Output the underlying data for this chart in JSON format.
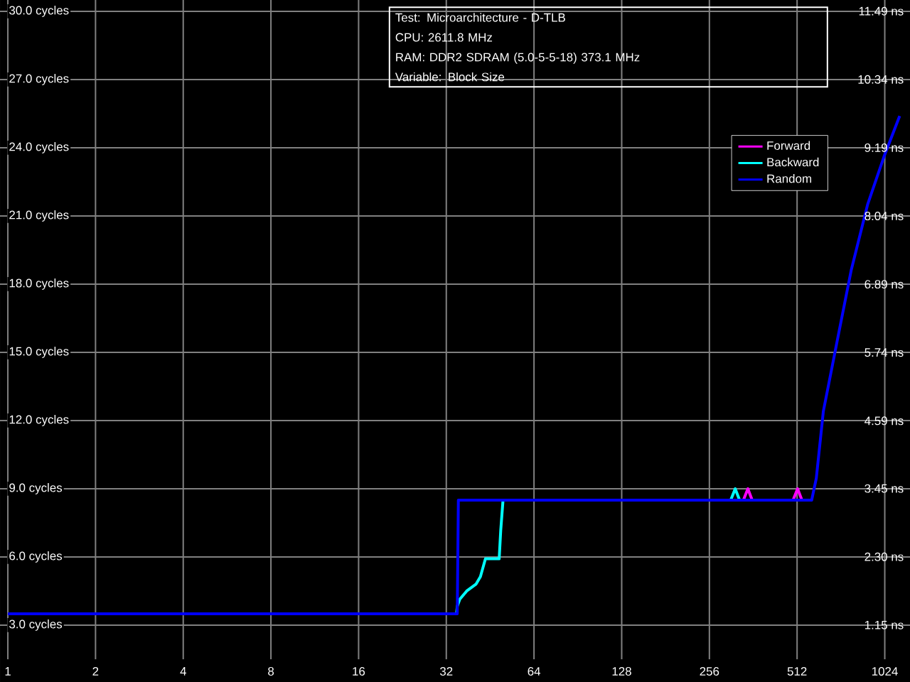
{
  "chart_data": {
    "type": "line",
    "annotations": [
      "Test: Microarchitecture - D-TLB",
      "CPU: 2611.8 MHz",
      "RAM: DDR2 SDRAM (5.0-5-5-18) 373.1 MHz",
      "Variable: Block Size"
    ],
    "log": "x",
    "grid": true,
    "legend": "top right",
    "marker": "none",
    "line_style": "solid",
    "xlim": [
      0.94,
      1250
    ],
    "xticks": [
      1,
      2,
      4,
      8,
      16,
      32,
      64,
      128,
      256,
      512,
      1024
    ],
    "ylim": [
      1.5,
      30.5
    ],
    "yticks": [
      {
        "value": 3,
        "label": "3.0 cycles"
      },
      {
        "value": 6,
        "label": "6.0 cycles"
      },
      {
        "value": 9,
        "label": "9.0 cycles"
      },
      {
        "value": 12,
        "label": "12.0 cycles"
      },
      {
        "value": 15,
        "label": "15.0 cycles"
      },
      {
        "value": 18,
        "label": "18.0 cycles"
      },
      {
        "value": 21,
        "label": "21.0 cycles"
      },
      {
        "value": 24,
        "label": "24.0 cycles"
      },
      {
        "value": 27,
        "label": "27.0 cycles"
      },
      {
        "value": 30,
        "label": "30.0 cycles"
      }
    ],
    "y2lim": [
      0.574,
      11.678
    ],
    "y2ticks": [
      {
        "value": 1.15,
        "label": "1.15 ns"
      },
      {
        "value": 2.3,
        "label": "2.30 ns"
      },
      {
        "value": 3.45,
        "label": "3.45 ns"
      },
      {
        "value": 4.59,
        "label": "4.59 ns"
      },
      {
        "value": 5.74,
        "label": "5.74 ns"
      },
      {
        "value": 6.89,
        "label": "6.89 ns"
      },
      {
        "value": 8.04,
        "label": "8.04 ns"
      },
      {
        "value": 9.19,
        "label": "9.19 ns"
      },
      {
        "value": 10.34,
        "label": "10.34 ns"
      },
      {
        "value": 11.49,
        "label": "11.49 ns"
      }
    ],
    "series": [
      {
        "name": "Forward",
        "color": "#ff00ff",
        "x": [
          335,
          347,
          359,
          420,
          496,
          514,
          532
        ],
        "values": [
          8.5,
          9.0,
          8.5,
          null,
          8.5,
          9.0,
          8.5
        ]
      },
      {
        "name": "Backward",
        "color": "#00ffff",
        "x": [
          34.7,
          34.9,
          35.6,
          37.6,
          40.5,
          41.9,
          43.6,
          48.6,
          49.2,
          50.1,
          200,
          303,
          314,
          325
        ],
        "values": [
          3.5,
          3.83,
          4.14,
          4.5,
          4.81,
          5.13,
          5.92,
          5.92,
          7.17,
          8.5,
          null,
          8.5,
          9.0,
          8.5
        ]
      },
      {
        "name": "Random",
        "color": "#0000ff",
        "x": [
          1,
          32,
          34.9,
          35.2,
          574.6,
          596,
          630,
          703,
          785,
          894,
          1017,
          1152
        ],
        "values": [
          3.5,
          3.5,
          3.5,
          8.5,
          8.5,
          9.46,
          12.4,
          15.5,
          18.6,
          21.5,
          23.6,
          25.4
        ]
      }
    ]
  }
}
